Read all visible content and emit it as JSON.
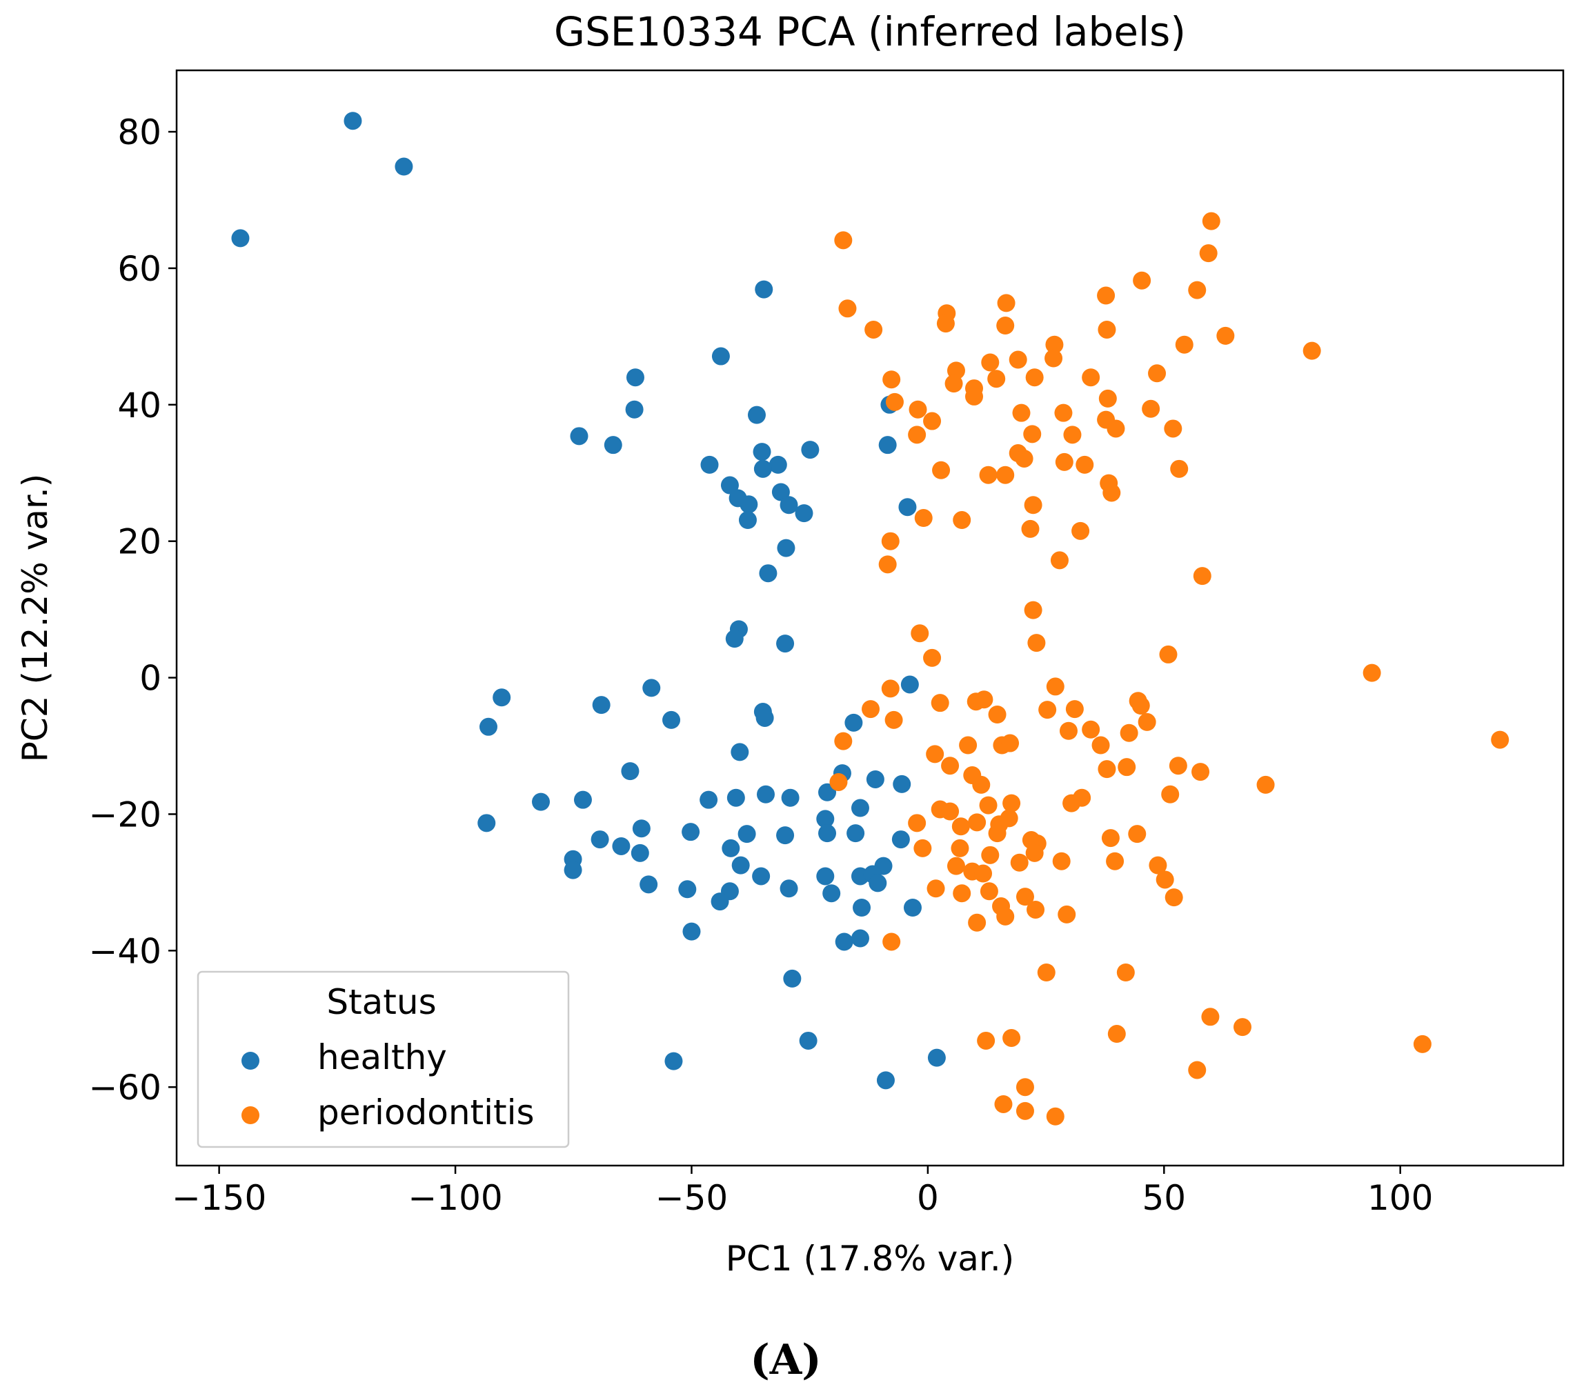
{
  "chart_data": {
    "type": "scatter",
    "title": "GSE10334 PCA (inferred labels)",
    "xlabel": "PC1 (17.8% var.)",
    "ylabel": "PC2 (12.2% var.)",
    "xlim": [
      -159,
      134.5
    ],
    "ylim": [
      -71.5,
      89
    ],
    "xticks": [
      -150,
      -100,
      -50,
      0,
      50,
      100
    ],
    "xtick_labels": [
      "−150",
      "−100",
      "−50",
      "0",
      "50",
      "100"
    ],
    "yticks": [
      -60,
      -40,
      -20,
      0,
      20,
      40,
      60,
      80
    ],
    "ytick_labels": [
      "−60",
      "−40",
      "−20",
      "0",
      "20",
      "40",
      "60",
      "80"
    ],
    "grid": false,
    "legend": {
      "title": "Status",
      "placement": "lower-left"
    },
    "panel_label": "(A)",
    "series": [
      {
        "name": "healthy",
        "color": "#1f77b4",
        "points": [
          [
            -145.5,
            64.4
          ],
          [
            -121.7,
            81.6
          ],
          [
            -110.9,
            74.9
          ],
          [
            -34.7,
            56.9
          ],
          [
            -43.8,
            47.1
          ],
          [
            -61.9,
            44
          ],
          [
            -62.1,
            39.3
          ],
          [
            -73.8,
            35.4
          ],
          [
            -66.6,
            34.1
          ],
          [
            -36.2,
            38.5
          ],
          [
            -35.1,
            33.1
          ],
          [
            -31.7,
            31.2
          ],
          [
            -34.9,
            30.6
          ],
          [
            -46.2,
            31.2
          ],
          [
            -24.9,
            33.4
          ],
          [
            -8.1,
            40
          ],
          [
            -8.5,
            34.1
          ],
          [
            -41.9,
            28.2
          ],
          [
            -40.2,
            26.3
          ],
          [
            -37.9,
            25.4
          ],
          [
            -31.1,
            27.2
          ],
          [
            -29.4,
            25.3
          ],
          [
            -38.1,
            23.1
          ],
          [
            -26.2,
            24.1
          ],
          [
            -4.3,
            25
          ],
          [
            -30,
            19
          ],
          [
            -33.8,
            15.3
          ],
          [
            -40,
            7.1
          ],
          [
            -40.9,
            5.7
          ],
          [
            -30.2,
            5
          ],
          [
            -3.8,
            -1
          ],
          [
            -58.5,
            -1.5
          ],
          [
            -90.2,
            -2.9
          ],
          [
            -93,
            -7.2
          ],
          [
            -69.1,
            -4
          ],
          [
            -54.3,
            -6.2
          ],
          [
            -34.9,
            -5
          ],
          [
            -34.5,
            -5.9
          ],
          [
            -15.7,
            -6.6
          ],
          [
            -39.8,
            -10.9
          ],
          [
            -63,
            -13.7
          ],
          [
            -18.1,
            -14
          ],
          [
            -11.1,
            -14.9
          ],
          [
            -5.5,
            -15.6
          ],
          [
            -21.3,
            -16.8
          ],
          [
            -34.3,
            -17.1
          ],
          [
            -40.6,
            -17.6
          ],
          [
            -29.1,
            -17.6
          ],
          [
            -46.4,
            -17.9
          ],
          [
            -73,
            -17.9
          ],
          [
            -81.9,
            -18.2
          ],
          [
            -14.3,
            -19.1
          ],
          [
            -21.7,
            -20.7
          ],
          [
            -93.4,
            -21.3
          ],
          [
            -60.6,
            -22.1
          ],
          [
            -21.3,
            -22.8
          ],
          [
            -50.2,
            -22.6
          ],
          [
            -38.3,
            -22.9
          ],
          [
            -30.2,
            -23.1
          ],
          [
            -15.3,
            -22.8
          ],
          [
            -5.7,
            -23.7
          ],
          [
            -69.4,
            -23.7
          ],
          [
            -64.9,
            -24.7
          ],
          [
            -41.7,
            -25
          ],
          [
            -60.9,
            -25.7
          ],
          [
            -39.6,
            -27.5
          ],
          [
            -75.1,
            -26.6
          ],
          [
            -75.1,
            -28.2
          ],
          [
            -9.4,
            -27.6
          ],
          [
            -21.7,
            -29.1
          ],
          [
            -35.3,
            -29.1
          ],
          [
            -14.3,
            -29.1
          ],
          [
            -11.7,
            -28.8
          ],
          [
            -10.6,
            -30.1
          ],
          [
            -59.1,
            -30.3
          ],
          [
            -50.9,
            -31
          ],
          [
            -29.4,
            -30.9
          ],
          [
            -41.9,
            -31.3
          ],
          [
            -44,
            -32.8
          ],
          [
            -20.4,
            -31.6
          ],
          [
            -14,
            -33.7
          ],
          [
            -3.2,
            -33.7
          ],
          [
            -50,
            -37.2
          ],
          [
            -17.7,
            -38.7
          ],
          [
            -14.3,
            -38.2
          ],
          [
            -28.7,
            -44.1
          ],
          [
            -25.3,
            -53.2
          ],
          [
            -53.8,
            -56.2
          ],
          [
            1.9,
            -55.7
          ],
          [
            -8.9,
            -59
          ]
        ]
      },
      {
        "name": "periodontitis",
        "color": "#ff7f0e",
        "points": [
          [
            -17.9,
            64.1
          ],
          [
            -17,
            54.1
          ],
          [
            -11.5,
            51
          ],
          [
            4,
            53.4
          ],
          [
            3.8,
            51.9
          ],
          [
            16.6,
            54.9
          ],
          [
            16.4,
            51.6
          ],
          [
            60,
            66.9
          ],
          [
            59.4,
            62.2
          ],
          [
            45.3,
            58.2
          ],
          [
            37.7,
            56
          ],
          [
            57,
            56.8
          ],
          [
            37.9,
            51
          ],
          [
            63,
            50.1
          ],
          [
            81.3,
            47.9
          ],
          [
            54.3,
            48.8
          ],
          [
            26.8,
            48.8
          ],
          [
            26.6,
            46.8
          ],
          [
            19.1,
            46.6
          ],
          [
            13.2,
            46.2
          ],
          [
            6,
            45
          ],
          [
            5.5,
            43.1
          ],
          [
            -7.7,
            43.7
          ],
          [
            14.5,
            43.8
          ],
          [
            22.6,
            44
          ],
          [
            34.5,
            44
          ],
          [
            48.5,
            44.6
          ],
          [
            9.8,
            42.4
          ],
          [
            9.8,
            41.2
          ],
          [
            -7,
            40.4
          ],
          [
            -2.1,
            39.3
          ],
          [
            0.9,
            37.6
          ],
          [
            19.8,
            38.8
          ],
          [
            28.7,
            38.8
          ],
          [
            38.1,
            40.9
          ],
          [
            47.2,
            39.4
          ],
          [
            37.7,
            37.8
          ],
          [
            39.8,
            36.5
          ],
          [
            -2.3,
            35.6
          ],
          [
            22.1,
            35.7
          ],
          [
            30.6,
            35.6
          ],
          [
            51.9,
            36.5
          ],
          [
            19.1,
            32.9
          ],
          [
            20.4,
            32.1
          ],
          [
            28.9,
            31.6
          ],
          [
            33.2,
            31.2
          ],
          [
            2.8,
            30.4
          ],
          [
            12.8,
            29.7
          ],
          [
            16.4,
            29.7
          ],
          [
            53.2,
            30.6
          ],
          [
            38.3,
            28.5
          ],
          [
            38.9,
            27.1
          ],
          [
            22.3,
            25.3
          ],
          [
            -0.9,
            23.4
          ],
          [
            7.2,
            23.1
          ],
          [
            21.7,
            21.8
          ],
          [
            32.3,
            21.5
          ],
          [
            -7.9,
            20
          ],
          [
            -8.5,
            16.6
          ],
          [
            27.9,
            17.2
          ],
          [
            58.1,
            14.9
          ],
          [
            22.3,
            9.9
          ],
          [
            -1.7,
            6.5
          ],
          [
            0.9,
            2.9
          ],
          [
            23,
            5.1
          ],
          [
            50.9,
            3.4
          ],
          [
            94,
            0.7
          ],
          [
            121.1,
            -9.1
          ],
          [
            -7.9,
            -1.6
          ],
          [
            27,
            -1.3
          ],
          [
            2.6,
            -3.7
          ],
          [
            10.2,
            -3.5
          ],
          [
            11.9,
            -3.2
          ],
          [
            44.5,
            -3.4
          ],
          [
            45.1,
            -4.1
          ],
          [
            -12.1,
            -4.6
          ],
          [
            25.3,
            -4.7
          ],
          [
            31.1,
            -4.6
          ],
          [
            14.7,
            -5.4
          ],
          [
            -7.2,
            -6.2
          ],
          [
            46.4,
            -6.5
          ],
          [
            34.5,
            -7.6
          ],
          [
            29.8,
            -7.8
          ],
          [
            42.6,
            -8.1
          ],
          [
            -17.9,
            -9.3
          ],
          [
            8.5,
            -9.9
          ],
          [
            15.7,
            -9.9
          ],
          [
            17.4,
            -9.6
          ],
          [
            36.6,
            -9.9
          ],
          [
            1.5,
            -11.2
          ],
          [
            4.7,
            -12.9
          ],
          [
            53,
            -12.9
          ],
          [
            57.7,
            -13.8
          ],
          [
            37.9,
            -13.4
          ],
          [
            42.1,
            -13.1
          ],
          [
            9.4,
            -14.3
          ],
          [
            11.3,
            -15.7
          ],
          [
            -18.9,
            -15.3
          ],
          [
            71.5,
            -15.7
          ],
          [
            32.6,
            -17.6
          ],
          [
            30.4,
            -18.4
          ],
          [
            51.3,
            -17.1
          ],
          [
            12.8,
            -18.7
          ],
          [
            17.7,
            -18.4
          ],
          [
            2.6,
            -19.3
          ],
          [
            4.7,
            -19.6
          ],
          [
            -2.3,
            -21.3
          ],
          [
            10.4,
            -21.2
          ],
          [
            15.1,
            -21.5
          ],
          [
            17.2,
            -20.6
          ],
          [
            7,
            -21.8
          ],
          [
            14.7,
            -22.8
          ],
          [
            38.7,
            -23.5
          ],
          [
            44.3,
            -22.9
          ],
          [
            21.9,
            -23.8
          ],
          [
            23.2,
            -24.3
          ],
          [
            -1.1,
            -25
          ],
          [
            6.8,
            -25
          ],
          [
            22.6,
            -25.7
          ],
          [
            13.2,
            -26
          ],
          [
            39.6,
            -26.9
          ],
          [
            28.3,
            -26.9
          ],
          [
            19.4,
            -27.1
          ],
          [
            6,
            -27.6
          ],
          [
            9.4,
            -28.4
          ],
          [
            11.7,
            -28.7
          ],
          [
            48.7,
            -27.5
          ],
          [
            50.2,
            -29.6
          ],
          [
            1.7,
            -30.9
          ],
          [
            13,
            -31.3
          ],
          [
            7.2,
            -31.6
          ],
          [
            20.6,
            -32.1
          ],
          [
            52.1,
            -32.2
          ],
          [
            15.5,
            -33.5
          ],
          [
            22.8,
            -34
          ],
          [
            29.4,
            -34.7
          ],
          [
            16.4,
            -35
          ],
          [
            10.4,
            -35.9
          ],
          [
            -7.7,
            -38.7
          ],
          [
            25.1,
            -43.2
          ],
          [
            41.9,
            -43.2
          ],
          [
            40,
            -52.2
          ],
          [
            12.3,
            -53.2
          ],
          [
            17.7,
            -52.8
          ],
          [
            59.8,
            -49.7
          ],
          [
            66.6,
            -51.2
          ],
          [
            104.7,
            -53.7
          ],
          [
            57,
            -57.5
          ],
          [
            20.6,
            -60
          ],
          [
            16,
            -62.5
          ],
          [
            20.6,
            -63.5
          ],
          [
            27,
            -64.3
          ]
        ]
      }
    ]
  }
}
